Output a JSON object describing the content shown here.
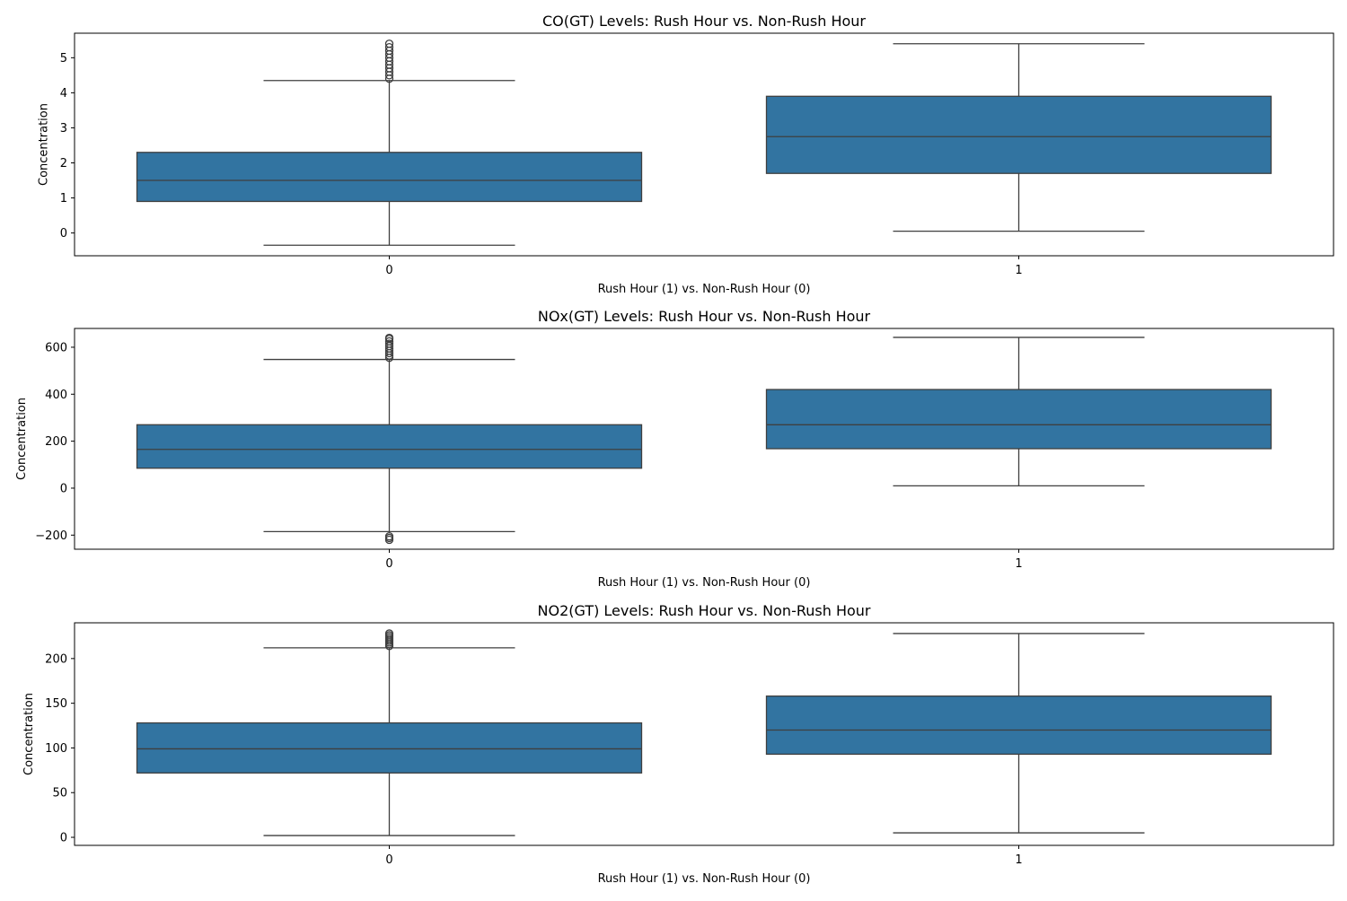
{
  "chart_data": [
    {
      "type": "box",
      "title": "CO(GT) Levels: Rush Hour vs. Non-Rush Hour",
      "xlabel": "Rush Hour (1) vs. Non-Rush Hour (0)",
      "ylabel": "Concentration",
      "categories": [
        "0",
        "1"
      ],
      "ylim": [
        -0.65,
        5.7
      ],
      "yticks": [
        0,
        1,
        2,
        3,
        4,
        5
      ],
      "ytick_labels": [
        "0",
        "1",
        "2",
        "3",
        "4",
        "5"
      ],
      "color": "#3274a1",
      "boxes": [
        {
          "category": "0",
          "whisker_low": -0.35,
          "q1": 0.9,
          "median": 1.5,
          "q3": 2.3,
          "whisker_high": 4.35,
          "outliers": [
            4.4,
            4.5,
            4.6,
            4.7,
            4.8,
            4.9,
            5.0,
            5.1,
            5.2,
            5.3,
            5.4
          ]
        },
        {
          "category": "1",
          "whisker_low": 0.05,
          "q1": 1.7,
          "median": 2.75,
          "q3": 3.9,
          "whisker_high": 5.4,
          "outliers": []
        }
      ]
    },
    {
      "type": "box",
      "title": "NOx(GT) Levels: Rush Hour vs. Non-Rush Hour",
      "xlabel": "Rush Hour (1) vs. Non-Rush Hour (0)",
      "ylabel": "Concentration",
      "categories": [
        "0",
        "1"
      ],
      "ylim": [
        -260,
        680
      ],
      "yticks": [
        -200,
        0,
        200,
        400,
        600
      ],
      "ytick_labels": [
        "−200",
        "0",
        "200",
        "400",
        "600"
      ],
      "color": "#3274a1",
      "boxes": [
        {
          "category": "0",
          "whisker_low": -185,
          "q1": 85,
          "median": 165,
          "q3": 270,
          "whisker_high": 548,
          "outliers": [
            -220,
            -212,
            -205,
            555,
            565,
            575,
            585,
            595,
            605,
            615,
            625,
            635,
            640
          ]
        },
        {
          "category": "1",
          "whisker_low": 10,
          "q1": 168,
          "median": 270,
          "q3": 420,
          "whisker_high": 642,
          "outliers": []
        }
      ]
    },
    {
      "type": "box",
      "title": "NO2(GT) Levels: Rush Hour vs. Non-Rush Hour",
      "xlabel": "Rush Hour (1) vs. Non-Rush Hour (0)",
      "ylabel": "Concentration",
      "categories": [
        "0",
        "1"
      ],
      "ylim": [
        -9,
        240
      ],
      "yticks": [
        0,
        50,
        100,
        150,
        200
      ],
      "ytick_labels": [
        "0",
        "50",
        "100",
        "150",
        "200"
      ],
      "color": "#3274a1",
      "boxes": [
        {
          "category": "0",
          "whisker_low": 2,
          "q1": 72,
          "median": 99,
          "q3": 128,
          "whisker_high": 212,
          "outliers": [
            214,
            216,
            218,
            220,
            222,
            224,
            226,
            228
          ]
        },
        {
          "category": "1",
          "whisker_low": 5,
          "q1": 93,
          "median": 120,
          "q3": 158,
          "whisker_high": 228,
          "outliers": []
        }
      ]
    }
  ]
}
